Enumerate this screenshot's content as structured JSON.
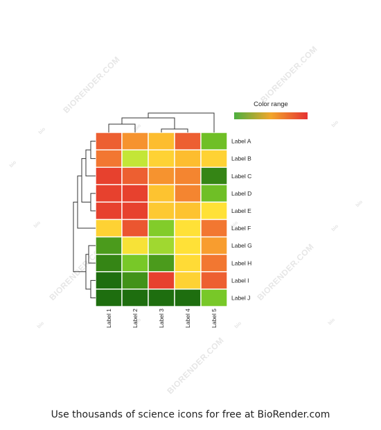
{
  "chart_data": {
    "type": "heatmap",
    "rows": [
      "Label A",
      "Label B",
      "Label C",
      "Label D",
      "Label E",
      "Label F",
      "Label G",
      "Label H",
      "Label I",
      "Label J"
    ],
    "columns": [
      "Label 1",
      "Label 2",
      "Label 3",
      "Label 4",
      "Label 5"
    ],
    "values": [
      [
        0.85,
        0.72,
        0.62,
        0.85,
        0.18
      ],
      [
        0.78,
        0.35,
        0.55,
        0.62,
        0.55
      ],
      [
        0.95,
        0.85,
        0.72,
        0.75,
        0.05
      ],
      [
        0.95,
        0.95,
        0.6,
        0.75,
        0.18
      ],
      [
        0.95,
        0.95,
        0.58,
        0.6,
        0.5
      ],
      [
        0.55,
        0.88,
        0.22,
        0.5,
        0.78
      ],
      [
        0.1,
        0.48,
        0.28,
        0.5,
        0.7
      ],
      [
        0.05,
        0.2,
        0.1,
        0.52,
        0.78
      ],
      [
        0.0,
        0.08,
        0.95,
        0.55,
        0.85
      ],
      [
        0.0,
        0.0,
        0.0,
        0.0,
        0.2
      ]
    ],
    "legend": {
      "title": "Color range",
      "stops": [
        "#4caf3f",
        "#f2a62b",
        "#e53232"
      ],
      "placement": "top-right"
    },
    "row_dendrogram": true,
    "column_dendrogram": true
  },
  "watermark": "BIORENDER.COM",
  "watermark_small": "bio",
  "footer": "Use thousands of science icons for free at BioRender.com"
}
